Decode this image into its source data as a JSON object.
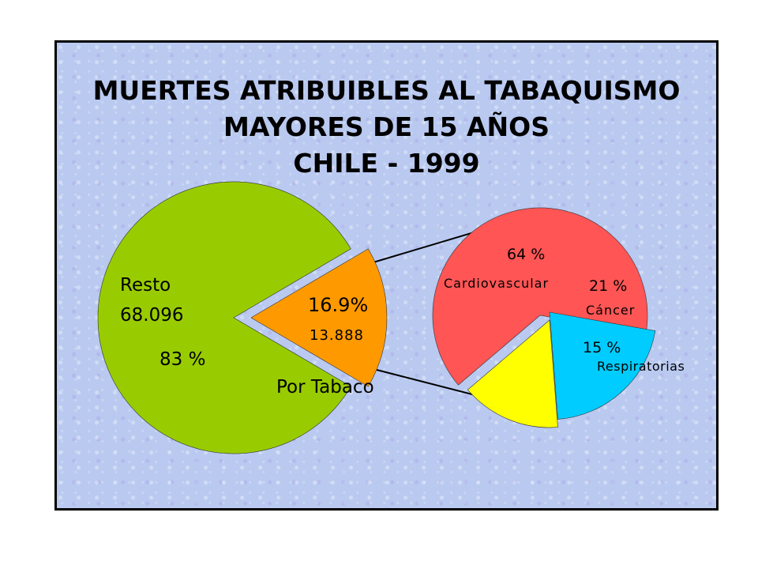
{
  "title_lines": [
    "MUERTES ATRIBUIBLES AL TABAQUISMO",
    "MAYORES DE 15 AÑOS",
    "CHILE -  1999"
  ],
  "colors": {
    "resto": "#99cc00",
    "tabaco": "#ff9900",
    "cardiovascular": "#ff5555",
    "cancer": "#00ccff",
    "respiratorias": "#ffff00",
    "background": "#b9c9f0"
  },
  "chart_data": [
    {
      "type": "pie",
      "slices": [
        {
          "label": "Resto",
          "count_label": "68.096",
          "percent_label": "83 %",
          "percent": 83.1
        },
        {
          "label": "Por  Tabaco",
          "count_label": "13.888",
          "percent_label": "16.9%",
          "percent": 16.9,
          "exploded": true
        }
      ]
    },
    {
      "type": "pie",
      "slices": [
        {
          "label": "Cardiovascular",
          "percent_label": "64 %",
          "percent": 64
        },
        {
          "label": "Cáncer",
          "percent_label": "21 %",
          "percent": 21
        },
        {
          "label": "Respiratorias",
          "percent_label": "15 %",
          "percent": 15
        }
      ]
    }
  ]
}
